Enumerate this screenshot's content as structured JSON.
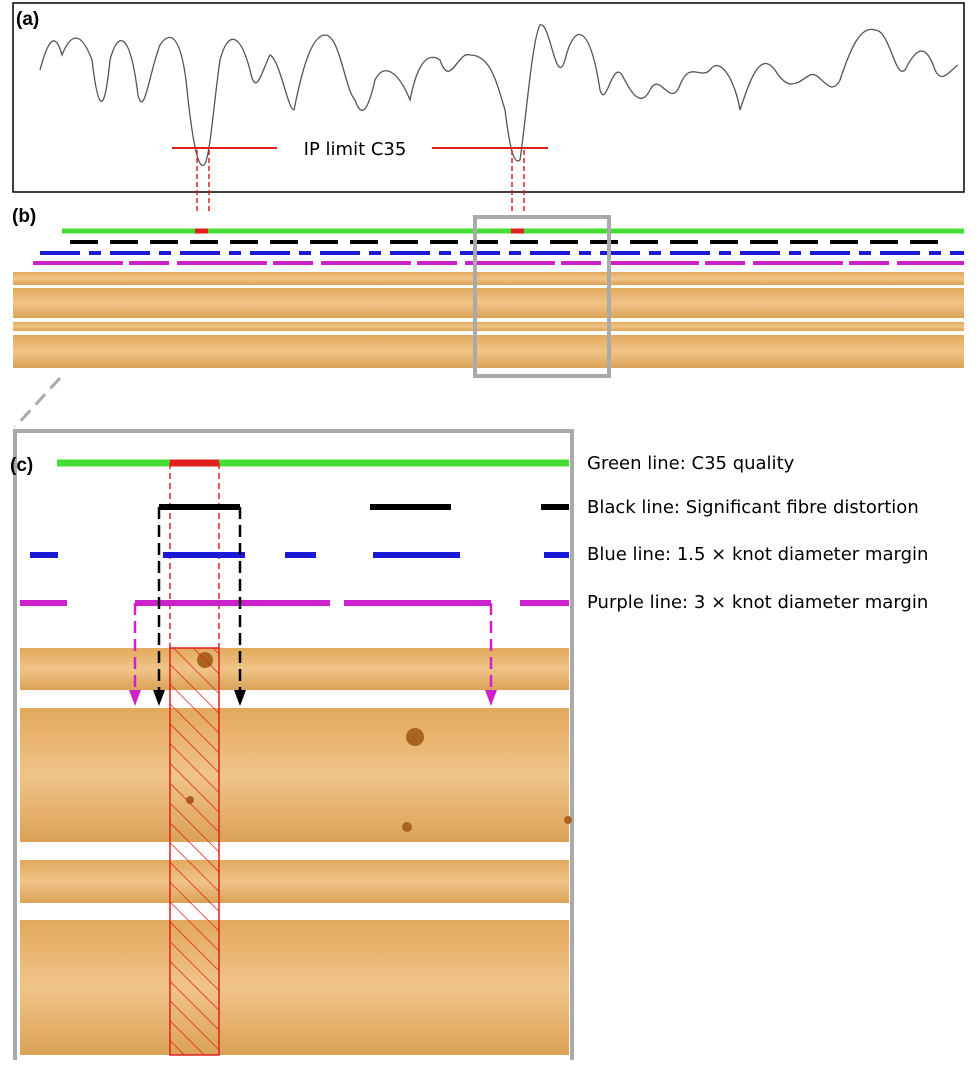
{
  "panels": {
    "a": {
      "label": "(a)",
      "annotation": "IP limit C35"
    },
    "b": {
      "label": "(b)"
    },
    "c": {
      "label": "(c)",
      "legend": [
        "Green line: C35 quality",
        "Black line: Significant fibre distortion",
        "Blue line: 1.5 × knot diameter margin",
        "Purple line: 3 × knot diameter margin"
      ]
    }
  }
}
